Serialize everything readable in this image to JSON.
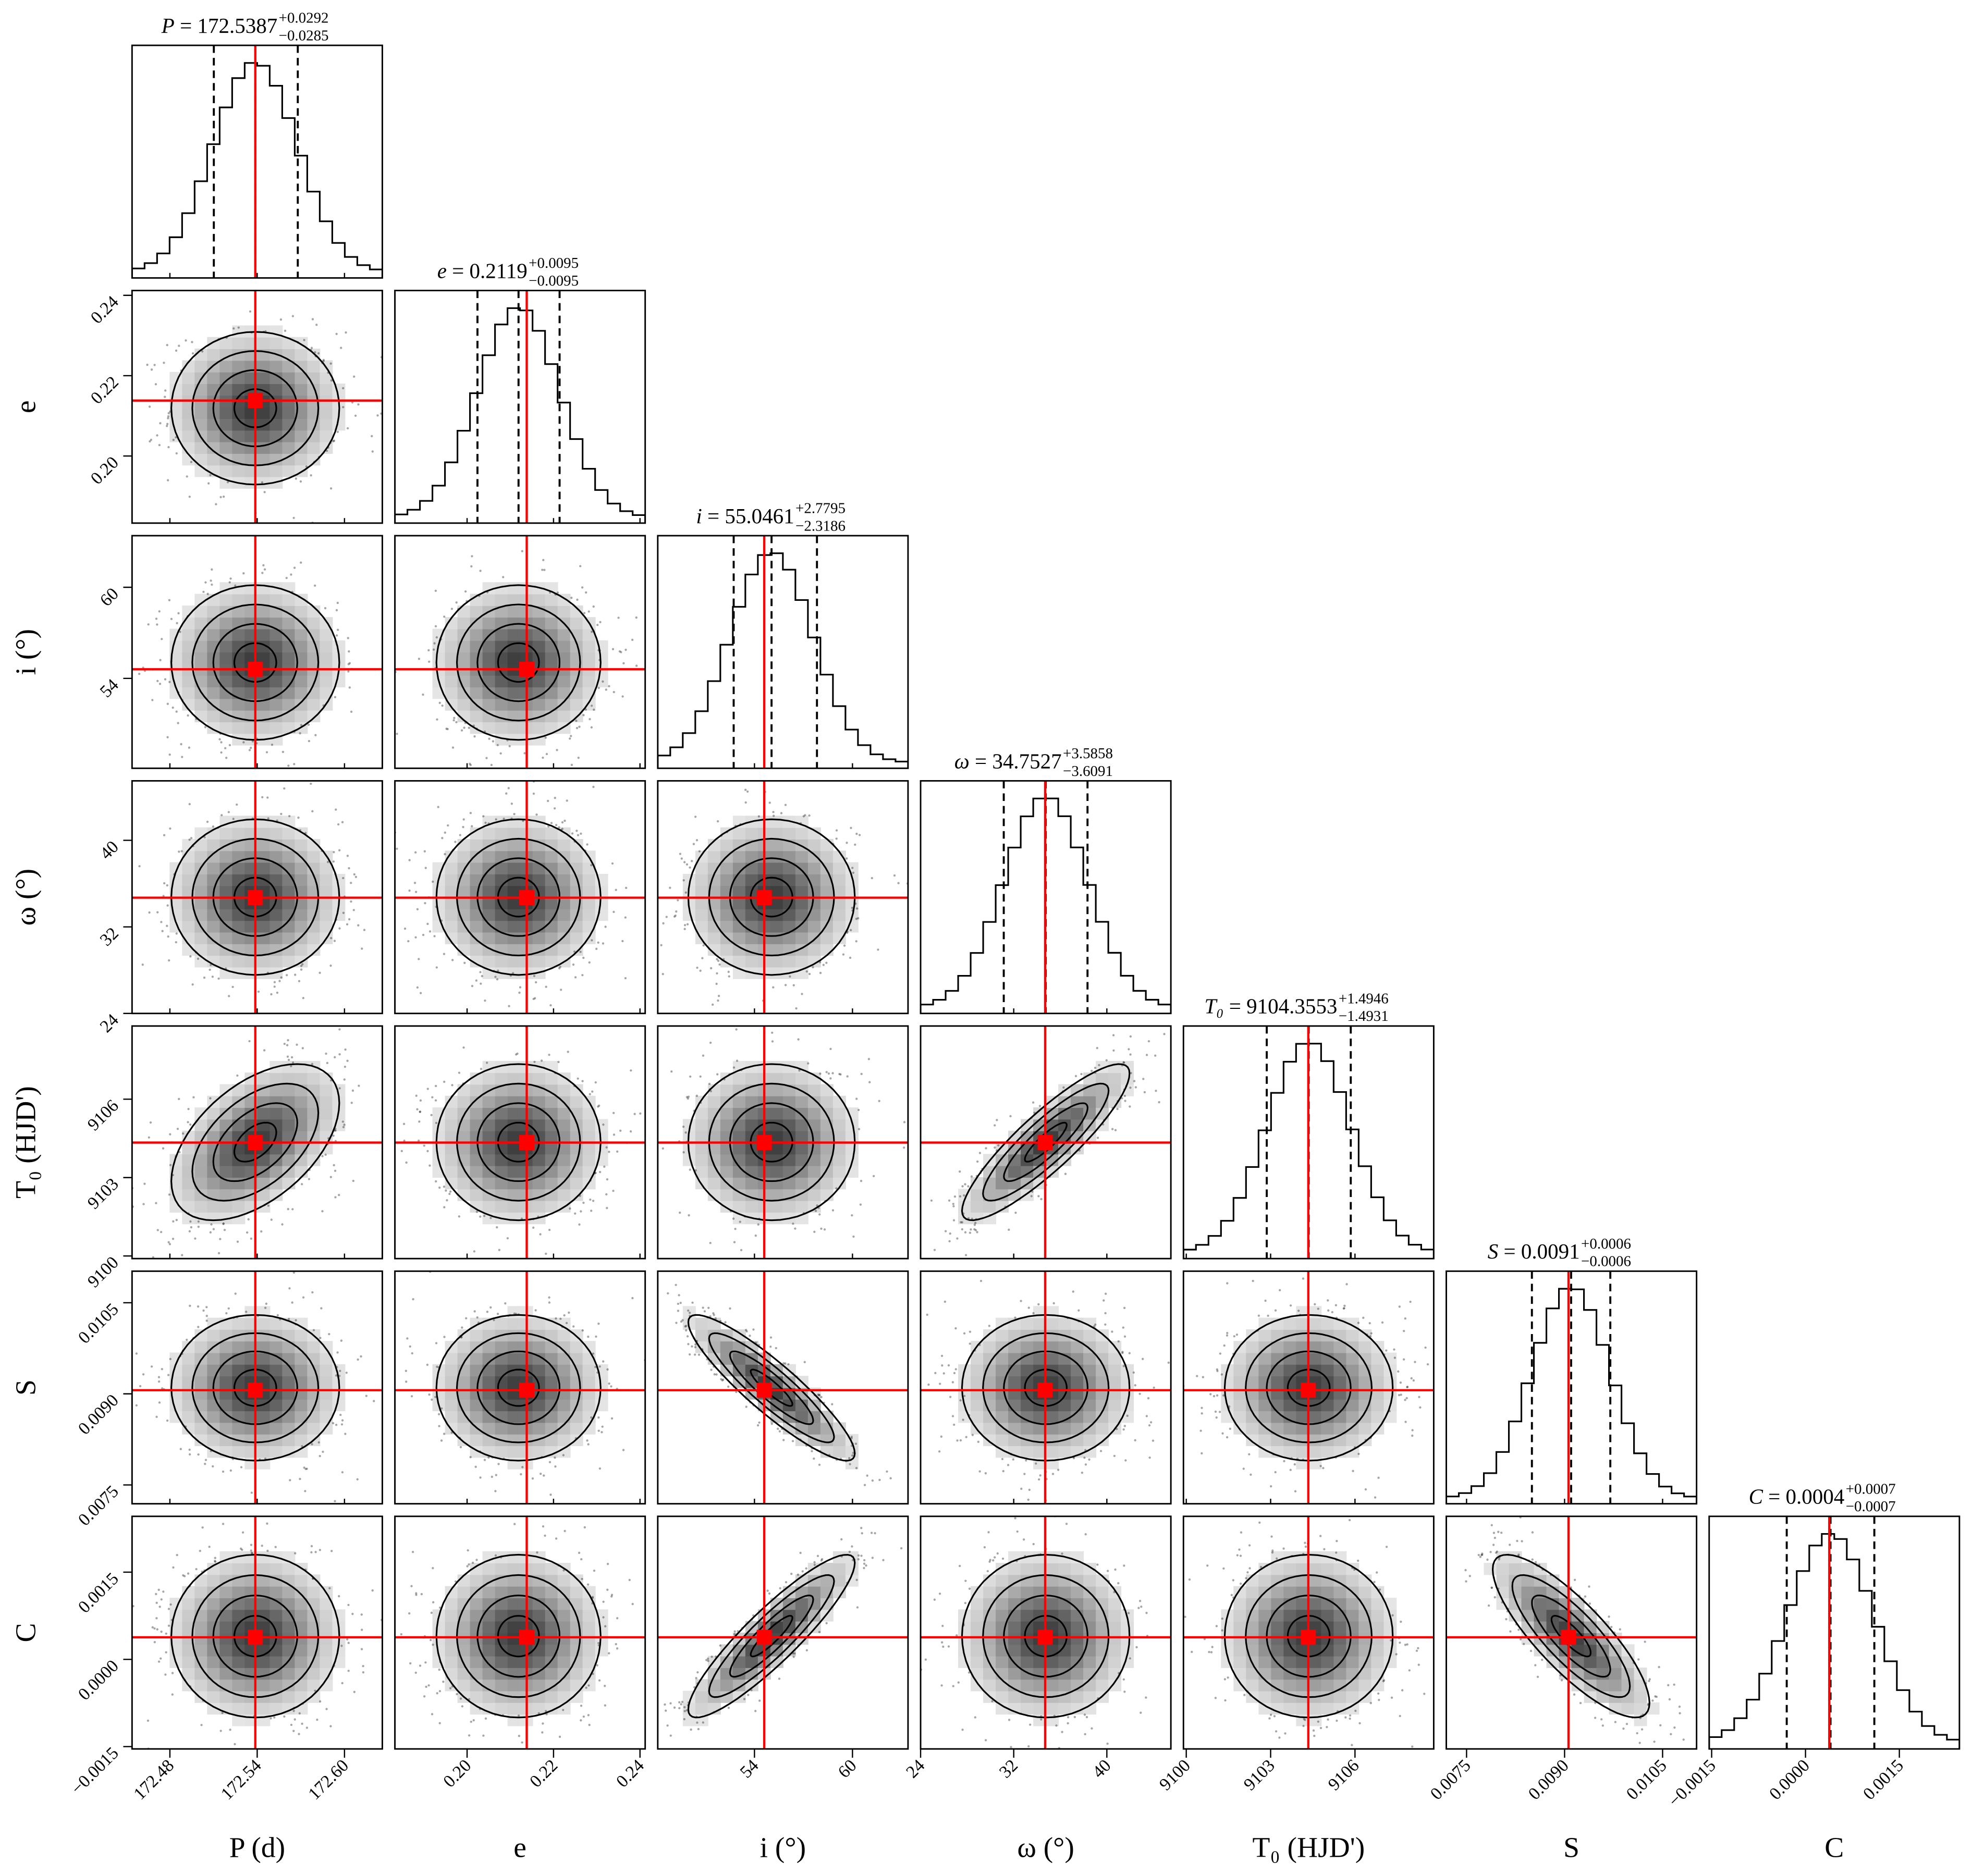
{
  "chart_data": {
    "type": "corner",
    "grid": false,
    "colors": {
      "contour": "#000000",
      "density": "#000000",
      "truth": "#ff0000",
      "quantile": "#000000"
    },
    "quantiles": [
      0.16,
      0.5,
      0.84
    ],
    "params": [
      {
        "symbol": "P",
        "label": "P (d)",
        "median": "172.5387",
        "plus": "0.0292",
        "minus": "0.0285",
        "truth": 172.5387,
        "range": [
          172.454,
          172.626
        ],
        "ticks": [
          172.48,
          172.54,
          172.6
        ],
        "tick_labels": [
          "172.48",
          "172.54",
          "172.60"
        ]
      },
      {
        "symbol": "e",
        "label": "e",
        "median": "0.2119",
        "plus": "0.0095",
        "minus": "0.0095",
        "truth": 0.2138,
        "range": [
          0.1833,
          0.2412
        ],
        "ticks": [
          0.2,
          0.22,
          0.24
        ],
        "tick_labels": [
          "0.20",
          "0.22",
          "0.24"
        ]
      },
      {
        "symbol": "i",
        "label": "i (°)",
        "median": "55.0461",
        "plus": "2.7795",
        "minus": "2.3186",
        "truth": 54.6,
        "range": [
          48.08,
          63.4
        ],
        "ticks": [
          54,
          60
        ],
        "tick_labels": [
          "54",
          "60"
        ]
      },
      {
        "symbol": "ω",
        "label": "ω (°)",
        "median": "34.7527",
        "plus": "3.5858",
        "minus": "3.6091",
        "truth": 34.7,
        "range": [
          24,
          45.5
        ],
        "ticks": [
          24,
          32,
          40
        ],
        "tick_labels": [
          "24",
          "32",
          "40"
        ]
      },
      {
        "symbol": "T₀",
        "label": "T₀ (HJD')",
        "median": "9104.3553",
        "plus": "1.4946",
        "minus": "1.4931",
        "truth": 9104.34,
        "range": [
          9099.9,
          9108.8
        ],
        "ticks": [
          9100,
          9103,
          9106
        ],
        "tick_labels": [
          "9100",
          "9103",
          "9106"
        ]
      },
      {
        "symbol": "S",
        "label": "S",
        "median": "0.0091",
        "plus": "0.0006",
        "minus": "0.0006",
        "truth": 0.00906,
        "range": [
          0.00719,
          0.01102
        ],
        "ticks": [
          0.0075,
          0.009,
          0.0105
        ],
        "tick_labels": [
          "0.0075",
          "0.0090",
          "0.0105"
        ]
      },
      {
        "symbol": "C",
        "label": "C",
        "median": "0.0004",
        "plus": "0.0007",
        "minus": "0.0007",
        "truth": 0.00038,
        "range": [
          -0.00154,
          0.00246
        ],
        "ticks": [
          -0.0015,
          0.0,
          0.0015
        ],
        "tick_labels": [
          "−0.0015",
          "0.0000",
          "0.0015"
        ]
      }
    ],
    "correlations": [
      [
        1,
        0,
        0,
        0,
        0.5,
        0,
        0
      ],
      [
        0,
        1,
        0,
        0,
        0,
        0,
        0
      ],
      [
        0,
        0,
        1,
        0,
        0,
        -0.9,
        0.9
      ],
      [
        0,
        0,
        0,
        1,
        0.88,
        0,
        0
      ],
      [
        0.5,
        0,
        0,
        0.88,
        1,
        0,
        0
      ],
      [
        0,
        0,
        -0.9,
        0,
        0,
        1,
        -0.82
      ],
      [
        0,
        0,
        0.9,
        0,
        0,
        -0.82,
        1
      ]
    ],
    "contour_levels_sigma": [
      0.5,
      1,
      1.5,
      2
    ]
  }
}
